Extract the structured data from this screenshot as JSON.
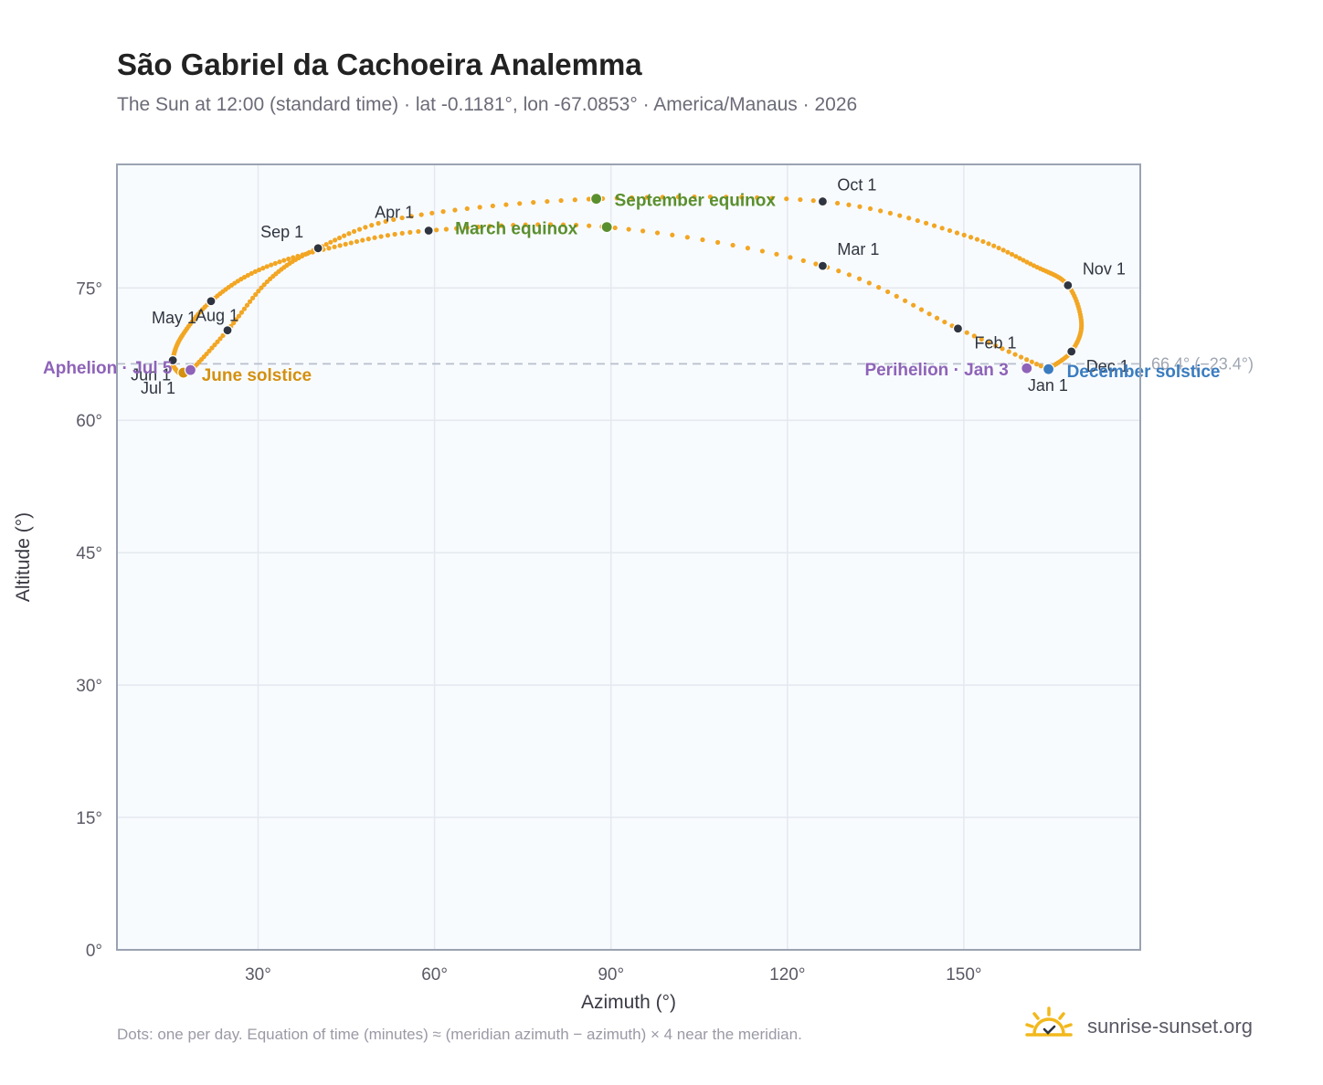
{
  "title": "São Gabriel da Cachoeira Analemma",
  "subtitle": "The Sun at 12:00 (standard time) · lat -0.1181°, lon -67.0853° · America/Manaus · 2026",
  "footnote": "Dots: one per day. Equation of time (minutes) ≈ (meridian azimuth − azimuth) × 4 near the meridian.",
  "brand": {
    "name": "sunrise-sunset.org",
    "icon": "sun-logo-icon"
  },
  "colors": {
    "path": "#f2a623",
    "month_marker": "#2f3540",
    "equinox": "#5a8f2e",
    "june_solstice": "#d4900f",
    "december_solstice": "#3a7cc0",
    "apsis": "#8e63b8",
    "reference_line": "#b8bfcc",
    "plot_bg": "#f8fbfe",
    "grid": "#e4e9ef",
    "axis_frame": "#9aa3b2"
  },
  "chart_data": {
    "type": "scatter",
    "xlabel": "Azimuth (°)",
    "ylabel": "Altitude (°)",
    "xlim": [
      6,
      180
    ],
    "ylim": [
      0,
      89
    ],
    "x_ticks": [
      30,
      60,
      90,
      120,
      150
    ],
    "x_tick_labels": [
      "30°",
      "60°",
      "90°",
      "120°",
      "150°"
    ],
    "y_ticks": [
      0,
      15,
      30,
      45,
      60,
      75
    ],
    "y_tick_labels": [
      "0°",
      "15°",
      "30°",
      "45°",
      "60°",
      "75°"
    ],
    "grid": true,
    "reference_line": {
      "altitude": 66.4,
      "label": "66.4° (−23.4°)"
    },
    "series": [],
    "month_markers": [
      {
        "label": "Jan 1",
        "az": 164.3,
        "alt": 65.8
      },
      {
        "label": "Feb 1",
        "az": 149.0,
        "alt": 70.4
      },
      {
        "label": "Mar 1",
        "az": 126.0,
        "alt": 77.5
      },
      {
        "label": "Apr 1",
        "az": 59.0,
        "alt": 81.5
      },
      {
        "label": "May 1",
        "az": 22.0,
        "alt": 73.5
      },
      {
        "label": "Jun 1",
        "az": 15.5,
        "alt": 66.8
      },
      {
        "label": "Jul 1",
        "az": 17.2,
        "alt": 65.3
      },
      {
        "label": "Aug 1",
        "az": 24.8,
        "alt": 70.2
      },
      {
        "label": "Sep 1",
        "az": 40.2,
        "alt": 79.5
      },
      {
        "label": "Oct 1",
        "az": 126.0,
        "alt": 84.8
      },
      {
        "label": "Nov 1",
        "az": 167.7,
        "alt": 75.3
      },
      {
        "label": "Dec 1",
        "az": 168.3,
        "alt": 67.8
      }
    ],
    "events": [
      {
        "label": "March equinox",
        "az": 89.3,
        "alt": 81.9,
        "kind": "equinox"
      },
      {
        "label": "September equinox",
        "az": 87.5,
        "alt": 85.1,
        "kind": "equinox"
      },
      {
        "label": "June solstice",
        "az": 17.3,
        "alt": 65.4,
        "kind": "june_solstice"
      },
      {
        "label": "December solstice",
        "az": 164.4,
        "alt": 65.8,
        "kind": "december_solstice"
      },
      {
        "label": "Aphelion · Jul 5",
        "az": 18.5,
        "alt": 65.7,
        "kind": "apsis"
      },
      {
        "label": "Perihelion · Jan 3",
        "az": 160.7,
        "alt": 65.9,
        "kind": "apsis"
      }
    ],
    "analemma_path": [
      [
        164.3,
        65.8
      ],
      [
        149.0,
        70.4
      ],
      [
        126.0,
        77.5
      ],
      [
        89.3,
        81.9
      ],
      [
        59.0,
        81.5
      ],
      [
        42.0,
        79.5
      ],
      [
        30.0,
        77.0
      ],
      [
        22.0,
        73.5
      ],
      [
        17.0,
        69.5
      ],
      [
        15.5,
        66.8
      ],
      [
        16.2,
        65.6
      ],
      [
        17.2,
        65.3
      ],
      [
        18.5,
        65.6
      ],
      [
        24.8,
        70.2
      ],
      [
        32.0,
        76.0
      ],
      [
        40.2,
        79.5
      ],
      [
        55.0,
        83.0
      ],
      [
        87.5,
        85.1
      ],
      [
        126.0,
        84.8
      ],
      [
        150.0,
        81.0
      ],
      [
        162.0,
        77.5
      ],
      [
        167.7,
        75.3
      ],
      [
        170.0,
        71.0
      ],
      [
        168.3,
        67.8
      ],
      [
        164.3,
        65.8
      ]
    ]
  }
}
